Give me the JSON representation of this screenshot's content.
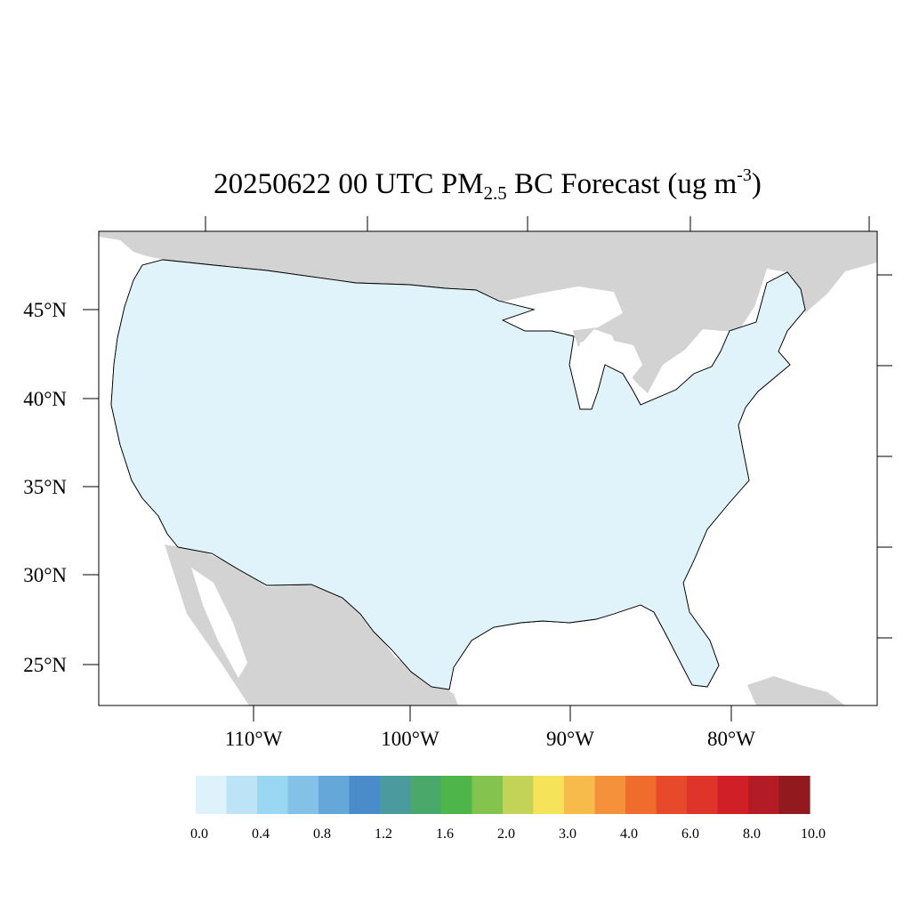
{
  "title": {
    "date_time": "20250622 00 UTC",
    "species": "PM",
    "species_subscript": "2.5",
    "rest": "BC Forecast (ug m",
    "unit_exponent": "-3",
    "close": ")"
  },
  "axes": {
    "lat_labels": [
      "45°N",
      "40°N",
      "35°N",
      "30°N",
      "25°N"
    ],
    "lon_labels": [
      "110°W",
      "100°W",
      "90°W",
      "80°W"
    ]
  },
  "colorbar": {
    "colors": [
      "#ddf2fb",
      "#bde4f6",
      "#9ad7f3",
      "#84c1e7",
      "#66a7da",
      "#4a8bc9",
      "#4a9a9e",
      "#4aa86b",
      "#4db549",
      "#84c44e",
      "#c3d357",
      "#f7e359",
      "#f7bb4c",
      "#f6913b",
      "#f06c2c",
      "#e64a2b",
      "#de3429",
      "#d11f28",
      "#b51b24",
      "#921a1e"
    ],
    "tick_labels": [
      "0.0",
      "0.4",
      "0.8",
      "1.2",
      "1.6",
      "2.0",
      "3.0",
      "4.0",
      "6.0",
      "8.0",
      "10.0"
    ]
  },
  "map": {
    "land_fill": "#d3d3d3",
    "county_base_fill": "#e0f3fb",
    "county_line": "#000000"
  }
}
